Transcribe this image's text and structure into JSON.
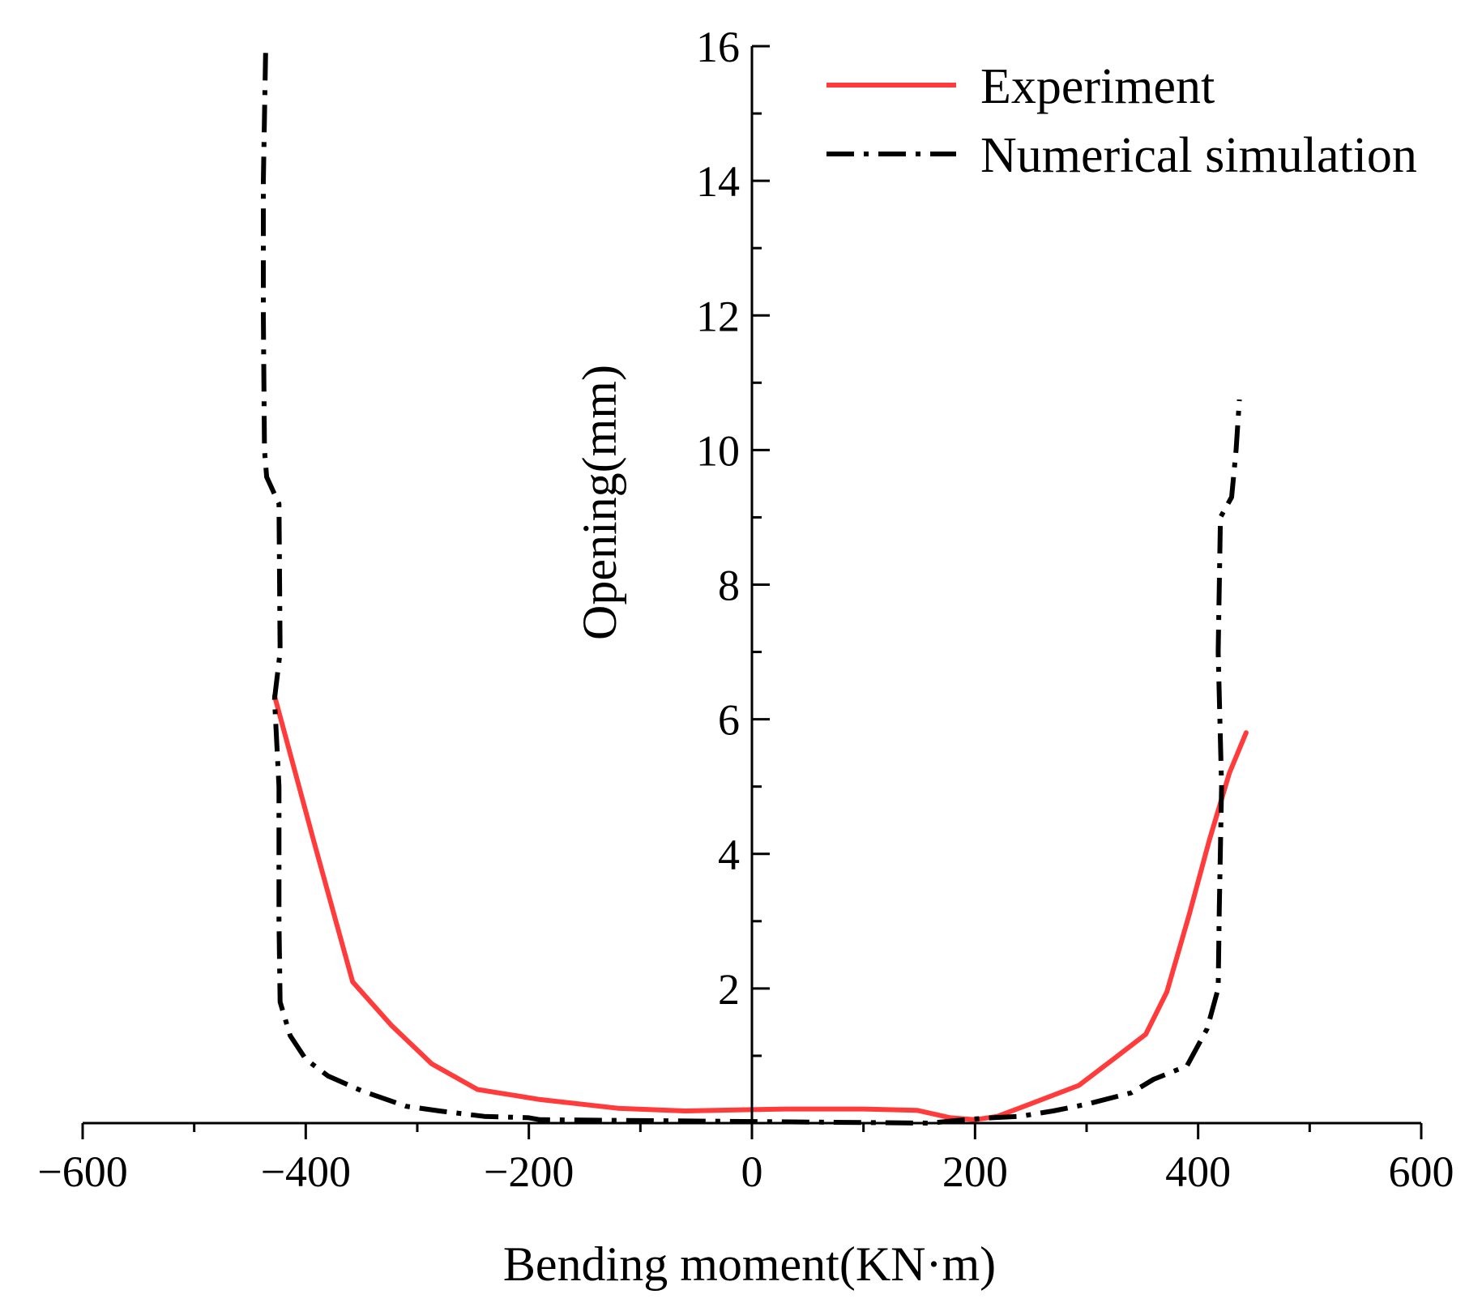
{
  "chart_data": {
    "type": "line",
    "xlabel": "Bending moment(KN·m)",
    "ylabel": "Opening(mm)",
    "xlim": [
      -600,
      600
    ],
    "ylim": [
      0,
      16
    ],
    "xticks": [
      -600,
      -400,
      -200,
      0,
      200,
      400,
      600
    ],
    "yticks": [
      2,
      4,
      6,
      8,
      10,
      12,
      14,
      16
    ],
    "x_tick_labels": [
      "−600",
      "−400",
      "−200",
      "0",
      "200",
      "400",
      "600"
    ],
    "y_tick_labels": [
      "2",
      "4",
      "6",
      "8",
      "10",
      "12",
      "14",
      "16"
    ],
    "legend_position": "top-right",
    "series": [
      {
        "name": "Experiment",
        "color": "#ff3b3b",
        "style": "solid",
        "points": [
          [
            -428,
            6.35
          ],
          [
            -393,
            4.2
          ],
          [
            -358,
            2.1
          ],
          [
            -323,
            1.45
          ],
          [
            -287,
            0.88
          ],
          [
            -246,
            0.5
          ],
          [
            -190,
            0.35
          ],
          [
            -120,
            0.22
          ],
          [
            -60,
            0.18
          ],
          [
            0,
            0.2
          ],
          [
            30,
            0.21
          ],
          [
            100,
            0.21
          ],
          [
            148,
            0.19
          ],
          [
            178,
            0.08
          ],
          [
            200,
            0.05
          ],
          [
            220,
            0.1
          ],
          [
            252,
            0.3
          ],
          [
            293,
            0.56
          ],
          [
            324,
            0.95
          ],
          [
            353,
            1.32
          ],
          [
            372,
            1.95
          ],
          [
            392,
            3.1
          ],
          [
            410,
            4.2
          ],
          [
            428,
            5.2
          ],
          [
            443,
            5.8
          ]
        ]
      },
      {
        "name": "Numerical simulation",
        "color": "#000000",
        "style": "dash-dot",
        "points": [
          [
            -436,
            15.9
          ],
          [
            -438,
            14.0
          ],
          [
            -438,
            12.0
          ],
          [
            -437,
            10.0
          ],
          [
            -435,
            9.6
          ],
          [
            -424,
            9.2
          ],
          [
            -423,
            7.0
          ],
          [
            -428,
            6.3
          ],
          [
            -424,
            5.0
          ],
          [
            -424,
            3.0
          ],
          [
            -423,
            1.8
          ],
          [
            -414,
            1.3
          ],
          [
            -400,
            0.95
          ],
          [
            -380,
            0.7
          ],
          [
            -350,
            0.48
          ],
          [
            -310,
            0.25
          ],
          [
            -280,
            0.18
          ],
          [
            -240,
            0.1
          ],
          [
            -200,
            0.08
          ],
          [
            -190,
            0.05
          ],
          [
            160,
            0.0
          ],
          [
            190,
            0.05
          ],
          [
            215,
            0.08
          ],
          [
            240,
            0.1
          ],
          [
            270,
            0.18
          ],
          [
            300,
            0.28
          ],
          [
            340,
            0.45
          ],
          [
            360,
            0.65
          ],
          [
            390,
            0.85
          ],
          [
            408,
            1.4
          ],
          [
            418,
            2.0
          ],
          [
            419,
            3.2
          ],
          [
            421,
            5.0
          ],
          [
            418,
            7.0
          ],
          [
            420,
            9.0
          ],
          [
            430,
            9.3
          ],
          [
            434,
            10.0
          ],
          [
            437,
            10.75
          ]
        ]
      }
    ]
  }
}
